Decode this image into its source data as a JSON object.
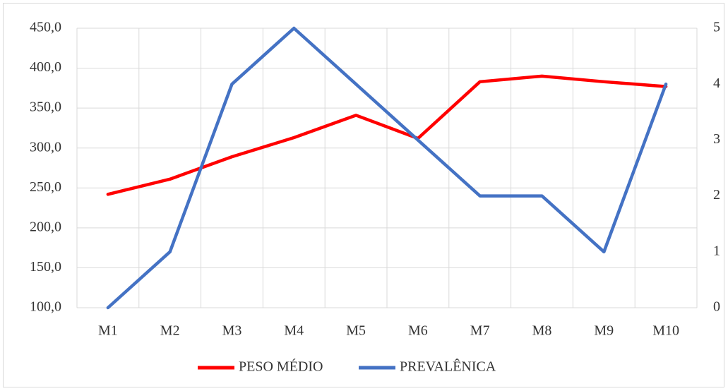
{
  "chart_data": {
    "type": "line",
    "categories": [
      "M1",
      "M2",
      "M3",
      "M4",
      "M5",
      "M6",
      "M7",
      "M8",
      "M9",
      "M10"
    ],
    "series": [
      {
        "name": "PESO MÉDIO",
        "color": "#ff0000",
        "values": [
          242,
          261,
          289,
          313,
          341,
          312,
          383,
          390,
          383,
          377
        ]
      },
      {
        "name": "PREVALÊNICA",
        "color": "#4472c4",
        "axis": "y2",
        "values": [
          0,
          1,
          4,
          5,
          4,
          3,
          2,
          2,
          1,
          4
        ]
      }
    ],
    "ylim": [
      100,
      450
    ],
    "yticks": [
      {
        "value": 100,
        "label": "100,0"
      },
      {
        "value": 150,
        "label": "150,0"
      },
      {
        "value": 200,
        "label": "200,0"
      },
      {
        "value": 250,
        "label": "250,0"
      },
      {
        "value": 300,
        "label": "300,0"
      },
      {
        "value": 350,
        "label": "350,0"
      },
      {
        "value": 400,
        "label": "400,0"
      },
      {
        "value": 450,
        "label": "450,0"
      }
    ],
    "y2lim": [
      0,
      5
    ],
    "y2ticks": [
      0,
      1,
      2,
      3,
      4,
      5
    ],
    "grid": true,
    "legend": "bottom"
  }
}
